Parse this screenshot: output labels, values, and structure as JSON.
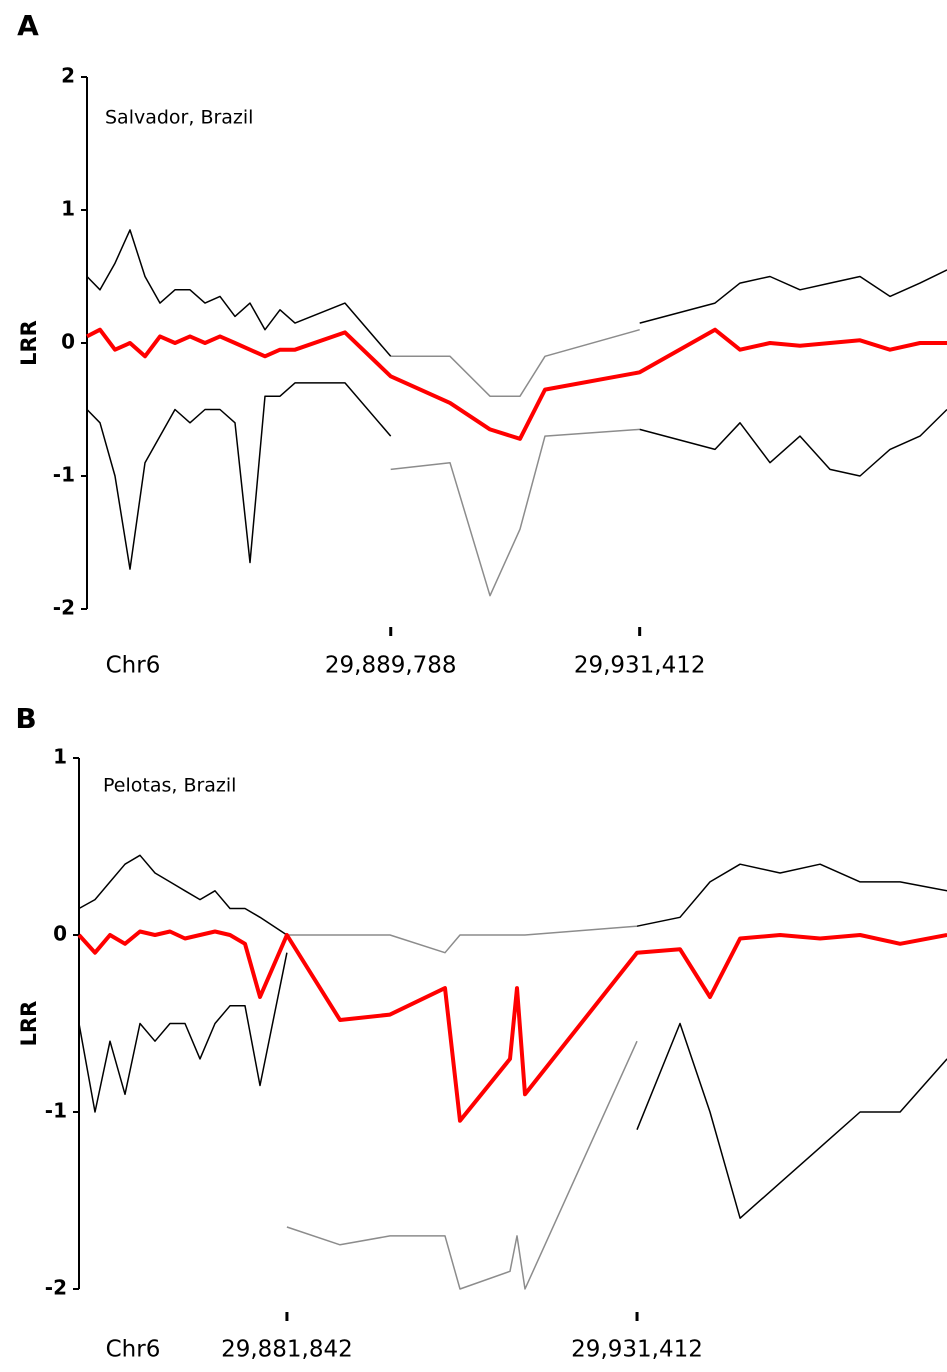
{
  "chart_data": [
    {
      "type": "line",
      "panel": "A",
      "annotation": "Salvador, Brazil",
      "y_label": "LRR",
      "x_label": "Chr6",
      "xlim": [
        29839000,
        29982800
      ],
      "ylim": [
        -2,
        2
      ],
      "yticks": [
        -2,
        -1,
        0,
        1,
        2
      ],
      "xticks": [
        {
          "value": 29889788,
          "label": "29,889,788"
        },
        {
          "value": 29931412,
          "label": "29,931,412"
        }
      ],
      "x": [
        29839000,
        29841174,
        29843682,
        29846190,
        29848698,
        29851206,
        29853714,
        29856222,
        29858730,
        29861238,
        29863746,
        29866254,
        29868762,
        29871270,
        29873778,
        29882138,
        29889788,
        29899694,
        29906382,
        29911398,
        29915578,
        29931412,
        29944002,
        29948182,
        29953198,
        29958214,
        29963230,
        29968246,
        29973262,
        29978278,
        29982792
      ],
      "series": [
        {
          "color": "#8c8c8c",
          "values": [
            null,
            null,
            null,
            null,
            null,
            null,
            null,
            null,
            null,
            null,
            null,
            null,
            null,
            null,
            null,
            null,
            -0.1,
            -0.1,
            -0.4,
            -0.4,
            -0.1,
            0.1,
            null,
            null,
            null,
            null,
            null,
            null,
            null,
            null,
            null
          ]
        },
        {
          "color": "#8c8c8c",
          "values": [
            null,
            null,
            null,
            null,
            null,
            null,
            null,
            null,
            null,
            null,
            null,
            null,
            null,
            null,
            null,
            null,
            -0.95,
            -0.9,
            -1.9,
            -1.4,
            -0.7,
            -0.65,
            null,
            null,
            null,
            null,
            null,
            null,
            null,
            null,
            null
          ]
        },
        {
          "color": "#000000",
          "values": [
            0.5,
            0.4,
            0.6,
            0.85,
            0.5,
            0.3,
            0.4,
            0.4,
            0.3,
            0.35,
            0.2,
            0.3,
            0.1,
            0.25,
            0.15,
            0.3,
            -0.1,
            null,
            null,
            null,
            null,
            0.15,
            0.3,
            0.45,
            0.5,
            0.4,
            0.45,
            0.5,
            0.35,
            0.45,
            0.55
          ]
        },
        {
          "color": "#000000",
          "values": [
            -0.5,
            -0.6,
            -1.0,
            -1.7,
            -0.9,
            -0.7,
            -0.5,
            -0.6,
            -0.5,
            -0.5,
            -0.6,
            -1.65,
            -0.4,
            -0.4,
            -0.3,
            -0.3,
            -0.7,
            null,
            null,
            null,
            null,
            -0.65,
            -0.8,
            -0.6,
            -0.9,
            -0.7,
            -0.95,
            -1.0,
            -0.8,
            -0.7,
            -0.5
          ]
        },
        {
          "color": "#ff0000",
          "values": [
            0.05,
            0.1,
            -0.05,
            0.0,
            -0.1,
            0.05,
            0.0,
            0.05,
            0.0,
            0.05,
            0.0,
            -0.05,
            -0.1,
            -0.05,
            -0.05,
            0.08,
            -0.25,
            -0.45,
            -0.65,
            -0.72,
            -0.35,
            -0.22,
            0.1,
            -0.05,
            0.0,
            -0.02,
            0.0,
            0.02,
            -0.05,
            0.0,
            0.0
          ]
        }
      ]
    },
    {
      "type": "line",
      "panel": "B",
      "annotation": "Pelotas, Brazil",
      "y_label": "LRR",
      "x_label": "Chr6",
      "xlim": [
        29852400,
        29975300
      ],
      "ylim": [
        -2,
        1
      ],
      "yticks": [
        -2,
        -1,
        0,
        1
      ],
      "xticks": [
        {
          "value": 29881842,
          "label": "29,881,842"
        },
        {
          "value": 29931412,
          "label": "29,931,412"
        }
      ],
      "x": [
        29852400,
        29854666,
        29856790,
        29858914,
        29861038,
        29863162,
        29865286,
        29867410,
        29869534,
        29871658,
        29873782,
        29875906,
        29878030,
        29881842,
        29889358,
        29896438,
        29904226,
        29906350,
        29913430,
        29914421,
        29915554,
        29931412,
        29937502,
        29941750,
        29945998,
        29951662,
        29957326,
        29962990,
        29968654,
        29975309
      ],
      "series": [
        {
          "color": "#8c8c8c",
          "values": [
            null,
            null,
            null,
            null,
            null,
            null,
            null,
            null,
            null,
            null,
            null,
            null,
            null,
            0.0,
            0.0,
            0.0,
            -0.1,
            0.0,
            0.0,
            0.0,
            0.0,
            0.05,
            null,
            null,
            null,
            null,
            null,
            null,
            null,
            null
          ]
        },
        {
          "color": "#8c8c8c",
          "values": [
            null,
            null,
            null,
            null,
            null,
            null,
            null,
            null,
            null,
            null,
            null,
            null,
            null,
            -1.65,
            -1.75,
            -1.7,
            -1.7,
            -2.0,
            -1.9,
            -1.7,
            -2.0,
            -0.6,
            null,
            null,
            null,
            null,
            null,
            null,
            null,
            null
          ]
        },
        {
          "color": "#000000",
          "values": [
            0.15,
            0.2,
            0.3,
            0.4,
            0.45,
            0.35,
            0.3,
            0.25,
            0.2,
            0.25,
            0.15,
            0.15,
            0.1,
            0.0,
            null,
            null,
            null,
            null,
            null,
            null,
            null,
            0.05,
            0.1,
            0.3,
            0.4,
            0.35,
            0.4,
            0.3,
            0.3,
            0.25
          ]
        },
        {
          "color": "#000000",
          "values": [
            -0.5,
            -1.0,
            -0.6,
            -0.9,
            -0.5,
            -0.6,
            -0.5,
            -0.5,
            -0.7,
            -0.5,
            -0.4,
            -0.4,
            -0.85,
            -0.1,
            null,
            null,
            null,
            null,
            null,
            null,
            null,
            -1.1,
            -0.5,
            -1.0,
            -1.6,
            -1.4,
            -1.2,
            -1.0,
            -1.0,
            -0.7
          ]
        },
        {
          "color": "#ff0000",
          "values": [
            0,
            -0.1,
            0.0,
            -0.05,
            0.02,
            0.0,
            0.02,
            -0.02,
            0.0,
            0.02,
            0.0,
            -0.05,
            -0.35,
            0.0,
            -0.48,
            -0.45,
            -0.3,
            -1.05,
            -0.7,
            -0.3,
            -0.9,
            -0.1,
            -0.08,
            -0.35,
            -0.02,
            0.0,
            -0.02,
            0.0,
            -0.05,
            0.0
          ]
        }
      ]
    }
  ]
}
